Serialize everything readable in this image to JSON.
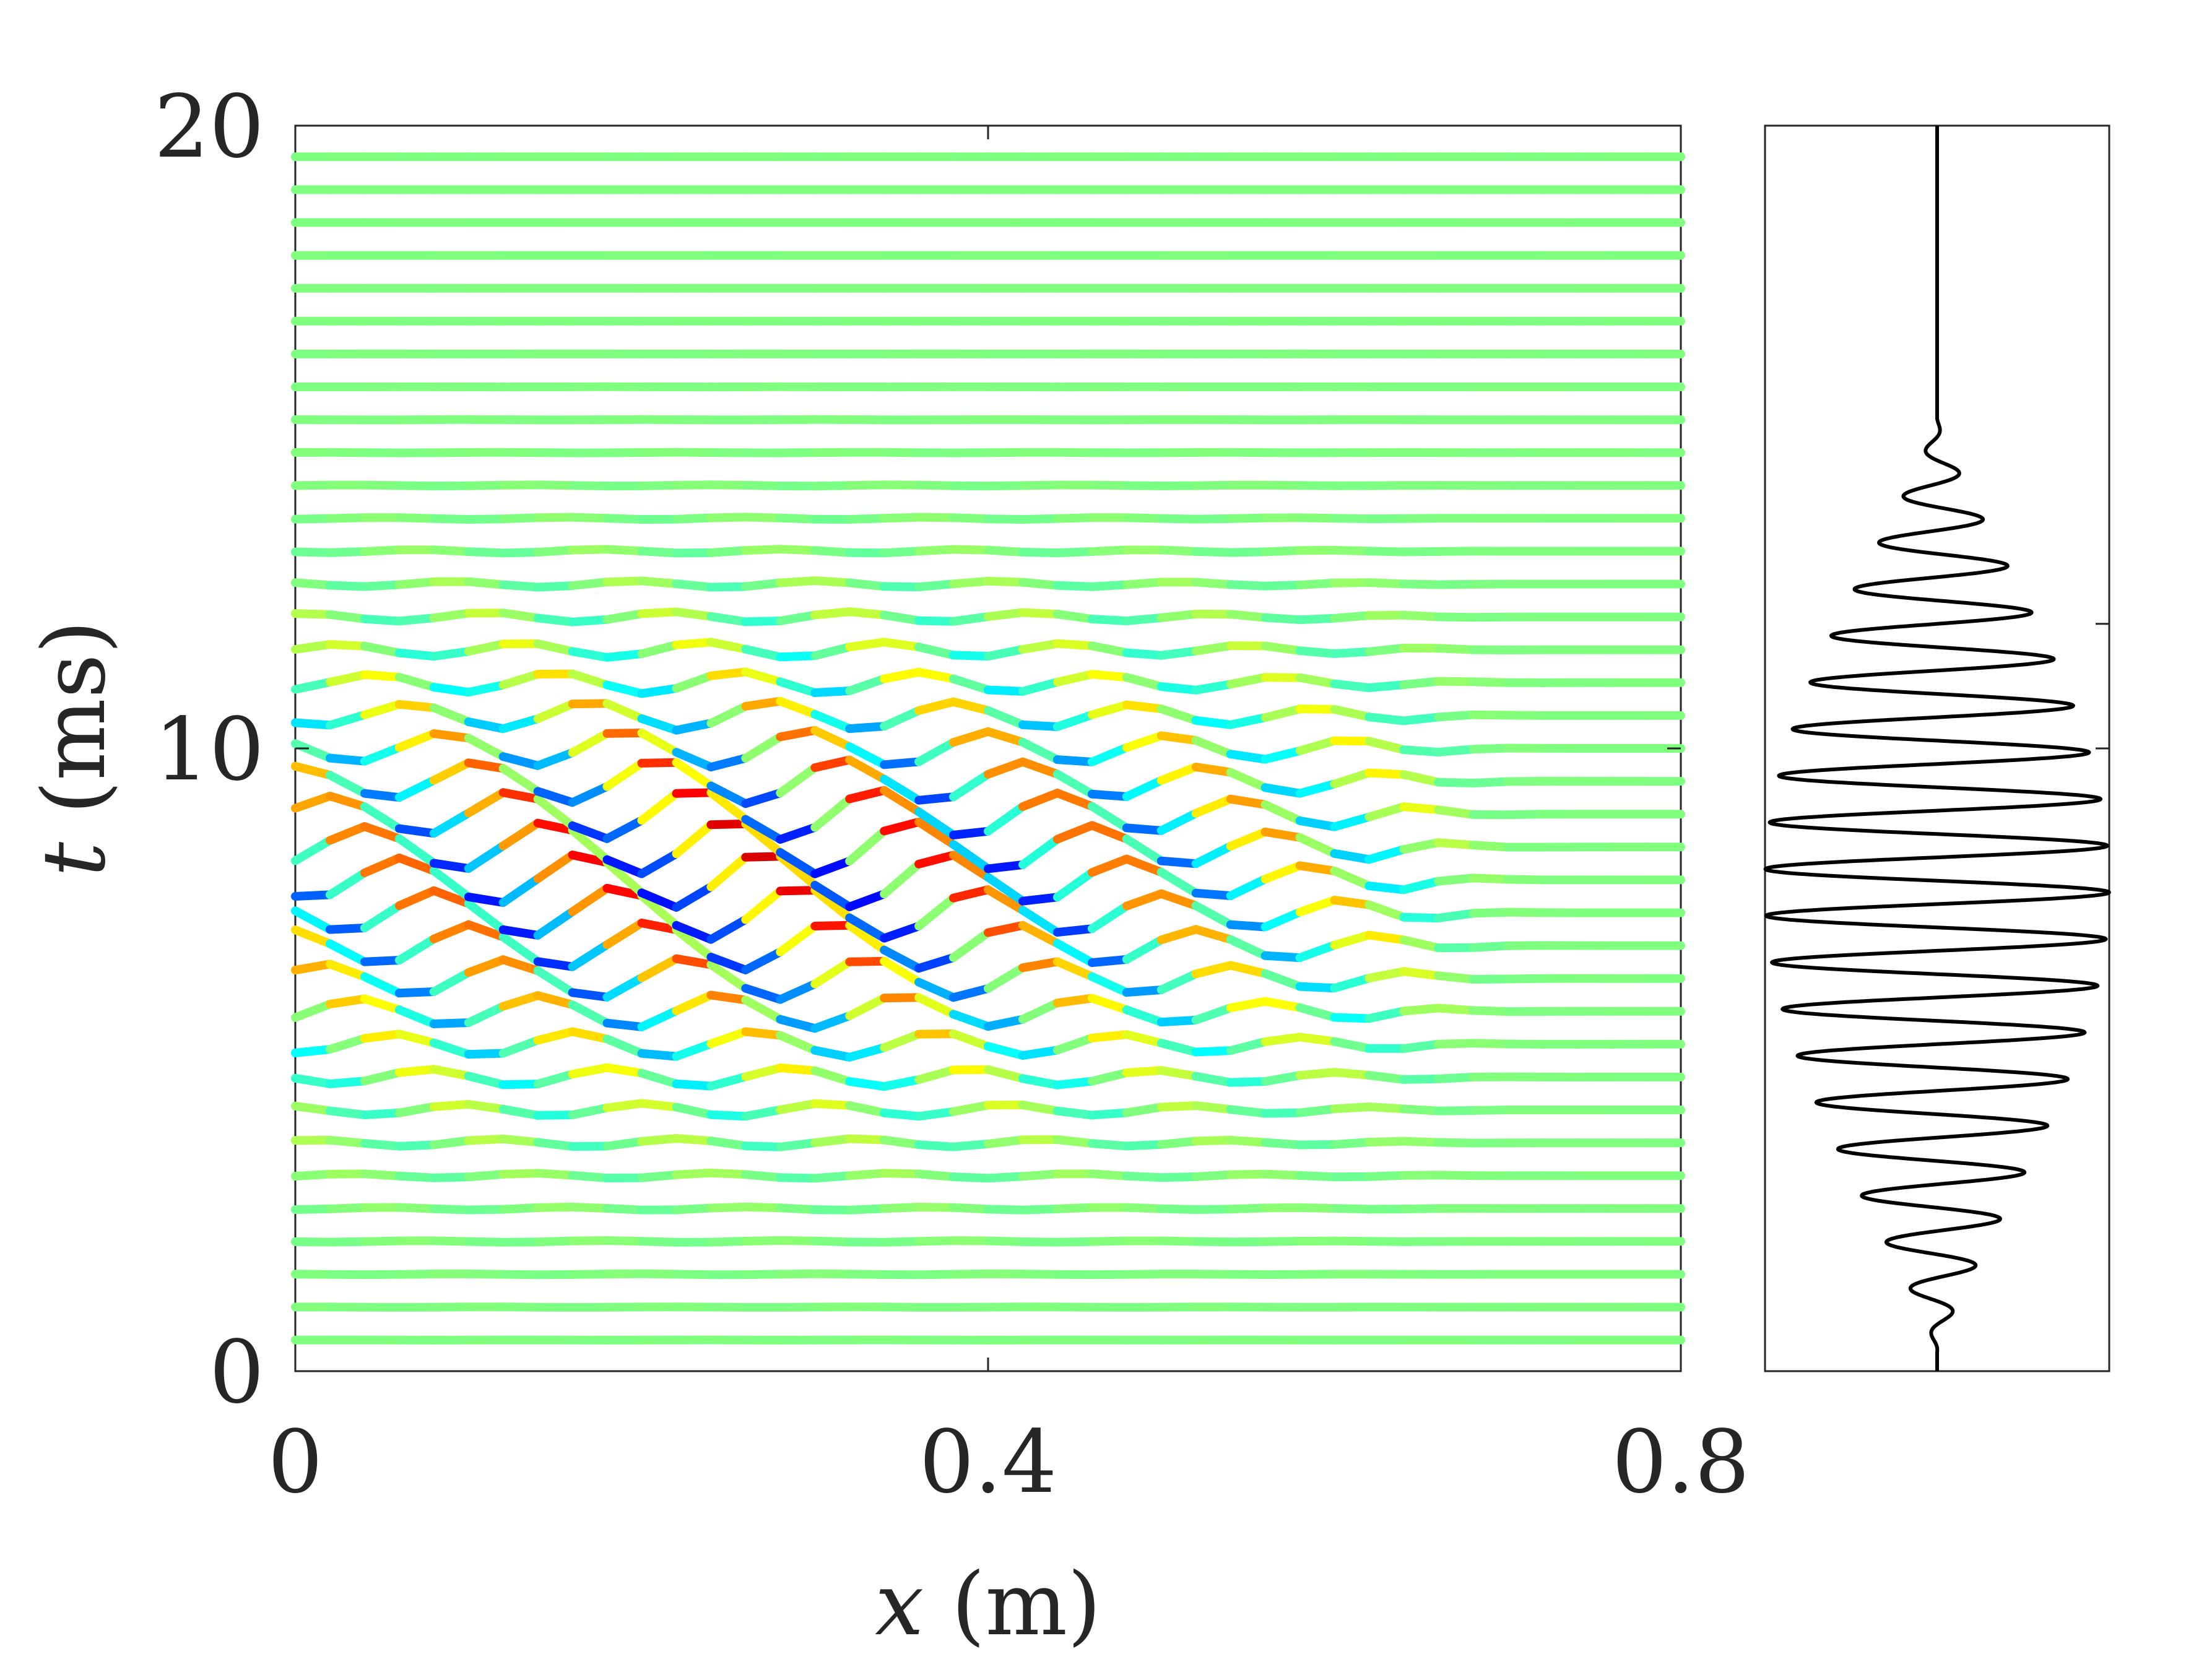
{
  "chart_data": [
    {
      "type": "line",
      "panel": "space-time",
      "xlabel": {
        "var": "x",
        "unit": " (m)"
      },
      "ylabel": {
        "var": "t",
        "unit": " (ms)"
      },
      "xlim": [
        0,
        0.8
      ],
      "ylim": [
        0,
        20
      ],
      "xticks": [
        0,
        0.4,
        0.8
      ],
      "yticks": [
        0,
        10,
        20
      ],
      "x_tick_labels": [
        "0",
        "0.4",
        "0.8"
      ],
      "y_tick_labels": [
        "0",
        "10",
        "20"
      ],
      "colormap": "jet",
      "trace_count": 37,
      "trace_time_range_ms": [
        0.5,
        19.5
      ],
      "x_samples": 41,
      "wave": {
        "center_time_ms": 8.0,
        "time_width_ms": 3.2,
        "center_x_m": 0.26,
        "x_width_m": 0.24,
        "x_period_m": 0.105,
        "max_deflection_ms": 0.45,
        "phase_step_per_trace": 1.2,
        "x_cutoff_m": 0.62
      },
      "grid": false,
      "legend": "none"
    },
    {
      "type": "line",
      "panel": "source-signal",
      "ylim": [
        0,
        20
      ],
      "xlim": [
        -1,
        1
      ],
      "ytick_marks": [
        10,
        12
      ],
      "amplitude": 1.0,
      "center_time_ms": 7.8,
      "envelope_half_width_ms": 7.5,
      "oscillation_period_ms": 0.75,
      "color": "#000000"
    }
  ]
}
